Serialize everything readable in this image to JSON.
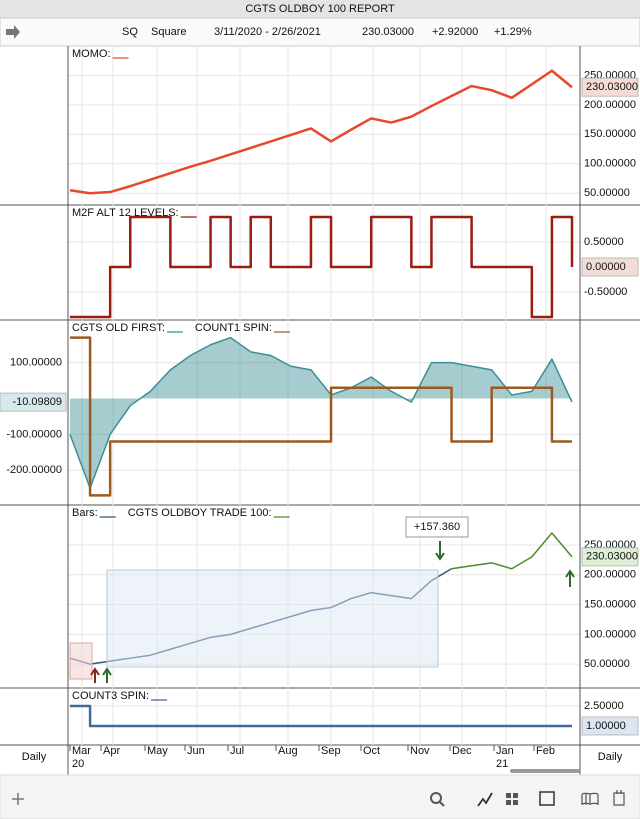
{
  "header": {
    "title": "CGTS OLDBOY 100  REPORT",
    "symbol": "SQ",
    "name": "Square",
    "range": "3/11/2020 - 2/26/2021",
    "last": "230.03000",
    "change": "+2.92000",
    "percent": "+1.29%"
  },
  "x_axis": {
    "period": "Daily",
    "categories": [
      "Mar",
      "Apr",
      "May",
      "Jun",
      "Jul",
      "Aug",
      "Sep",
      "Oct",
      "Nov",
      "Dec",
      "Jan",
      "Feb"
    ],
    "years": [
      "20",
      null,
      null,
      null,
      null,
      null,
      null,
      null,
      null,
      null,
      "21",
      null
    ]
  },
  "chart_data": [
    {
      "type": "line",
      "axis_side": "right",
      "ylim": [
        30,
        300
      ],
      "yticks": [
        {
          "value": 50,
          "label": "50.00000"
        },
        {
          "value": 100,
          "label": "100.00000"
        },
        {
          "value": 150,
          "label": "150.00000"
        },
        {
          "value": 200,
          "label": "200.00000"
        },
        {
          "value": 250,
          "label": "250.00000"
        }
      ],
      "marker": {
        "value": 230.03,
        "label": "230.03000",
        "color": "#d9442b",
        "background": "#f7dcd6"
      },
      "series": [
        {
          "name": "MOMO:",
          "color": "#e8482c",
          "values": [
            55,
            50,
            52,
            62,
            73,
            84,
            95,
            105,
            116,
            127,
            138,
            149,
            160,
            138,
            158,
            177,
            170,
            180,
            198,
            215,
            232,
            225,
            212,
            235,
            258,
            230
          ]
        }
      ]
    },
    {
      "type": "line",
      "axis_side": "right",
      "ylim": [
        -1.06,
        1.24
      ],
      "yticks": [
        {
          "value": 0.5,
          "label": "0.50000"
        },
        {
          "value": -0.5,
          "label": "-0.50000"
        }
      ],
      "marker": {
        "value": 0,
        "label": "0.00000",
        "color": "#8b1a10",
        "background": "#f1dcd8"
      },
      "series": [
        {
          "name": "M2F ALT 12 LEVELS:",
          "color": "#9b1c10",
          "step": true,
          "values": [
            -1,
            -1,
            0,
            1,
            1,
            0,
            0,
            1,
            0,
            1,
            0,
            0,
            1,
            0,
            0,
            1,
            1,
            0,
            1,
            1,
            0,
            0,
            0,
            -1,
            1,
            0
          ]
        }
      ]
    },
    {
      "type": "line",
      "axis_side": "left",
      "ylim": [
        -297,
        219
      ],
      "yticks": [
        {
          "value": 100,
          "label": "100.00000"
        },
        {
          "value": -100,
          "label": "-100.00000"
        },
        {
          "value": -200,
          "label": "-200.00000"
        }
      ],
      "marker": {
        "value": -10.09809,
        "label": "-10.09809",
        "color": "#2a5d6a",
        "background": "#d6e9ec"
      },
      "series": [
        {
          "name": "CGTS OLD FIRST:",
          "color": "#3a8f95",
          "area": true,
          "values": [
            -100,
            -250,
            -100,
            -20,
            20,
            80,
            120,
            150,
            170,
            130,
            120,
            90,
            80,
            10,
            30,
            60,
            20,
            -10,
            100,
            100,
            90,
            80,
            10,
            20,
            110,
            -10
          ]
        },
        {
          "name": "COUNT1 SPIN:",
          "color": "#9b5a1e",
          "step": true,
          "values": [
            170,
            -270,
            -120,
            -120,
            -120,
            -120,
            -120,
            -120,
            -120,
            -120,
            -120,
            -120,
            -120,
            30,
            30,
            30,
            30,
            30,
            30,
            -120,
            -120,
            30,
            30,
            30,
            -120,
            -120
          ]
        }
      ]
    },
    {
      "type": "line",
      "axis_side": "right",
      "ylim": [
        10,
        317
      ],
      "annotation": "+157.360",
      "yticks": [
        {
          "value": 50,
          "label": "50.00000"
        },
        {
          "value": 100,
          "label": "100.00000"
        },
        {
          "value": 150,
          "label": "150.00000"
        },
        {
          "value": 200,
          "label": "200.00000"
        },
        {
          "value": 250,
          "label": "250.00000"
        }
      ],
      "marker": {
        "value": 230.03,
        "label": "230.03000",
        "color": "#2f6b1e",
        "background": "#ddf0d6"
      },
      "series": [
        {
          "name": "Bars:",
          "color": "#33577f",
          "values": [
            60,
            50,
            55,
            60,
            65,
            75,
            85,
            95,
            100,
            110,
            120,
            130,
            140,
            145,
            160,
            170,
            165,
            160,
            190,
            210,
            null,
            null,
            null,
            null,
            null,
            null
          ]
        },
        {
          "name": "CGTS OLDBOY TRADE 100:",
          "color": "#4f8a2a",
          "values": [
            null,
            null,
            null,
            null,
            null,
            null,
            null,
            null,
            null,
            null,
            null,
            null,
            null,
            null,
            null,
            null,
            null,
            null,
            null,
            210,
            215,
            220,
            210,
            230,
            270,
            230
          ]
        }
      ]
    },
    {
      "type": "line",
      "axis_side": "right",
      "ylim": [
        -0.43,
        3.85
      ],
      "yticks": [
        {
          "value": 2.5,
          "label": "2.50000"
        }
      ],
      "marker": {
        "value": 1,
        "label": "1.00000",
        "color": "#2a4d75",
        "background": "#dbe6f2"
      },
      "series": [
        {
          "name": "COUNT3 SPIN:",
          "color": "#3f6a9a",
          "step": true,
          "values": [
            2.5,
            1,
            1,
            1,
            1,
            1,
            1,
            1,
            1,
            1,
            1,
            1,
            1,
            1,
            1,
            1,
            1,
            1,
            1,
            1,
            1,
            1,
            1,
            1,
            1,
            1
          ]
        }
      ]
    }
  ]
}
